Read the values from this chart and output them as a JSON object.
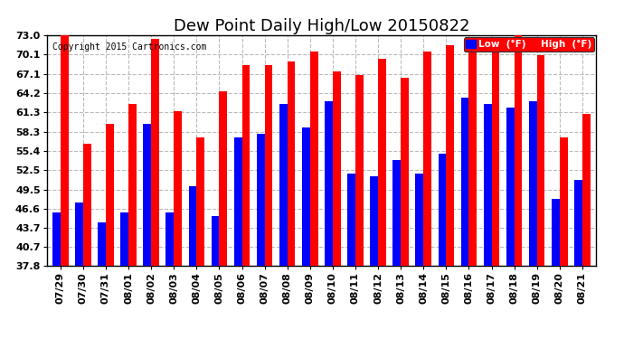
{
  "title": "Dew Point Daily High/Low 20150822",
  "copyright": "Copyright 2015 Cartronics.com",
  "dates": [
    "07/29",
    "07/30",
    "07/31",
    "08/01",
    "08/02",
    "08/03",
    "08/04",
    "08/05",
    "08/06",
    "08/07",
    "08/08",
    "08/09",
    "08/10",
    "08/11",
    "08/12",
    "08/13",
    "08/14",
    "08/15",
    "08/16",
    "08/17",
    "08/18",
    "08/19",
    "08/20",
    "08/21"
  ],
  "low": [
    46.0,
    47.5,
    44.5,
    46.0,
    59.5,
    46.0,
    50.0,
    45.5,
    57.5,
    58.0,
    62.5,
    59.0,
    63.0,
    52.0,
    51.5,
    54.0,
    52.0,
    55.0,
    63.5,
    62.5,
    62.0,
    63.0,
    48.0,
    51.0
  ],
  "high": [
    73.0,
    56.5,
    59.5,
    62.5,
    72.5,
    61.5,
    57.5,
    64.5,
    68.5,
    68.5,
    69.0,
    70.5,
    67.5,
    67.0,
    69.5,
    66.5,
    70.5,
    71.5,
    71.0,
    71.0,
    73.0,
    70.0,
    57.5,
    61.0
  ],
  "low_color": "#0000ff",
  "high_color": "#ff0000",
  "bg_color": "#ffffff",
  "ylim_min": 37.8,
  "ylim_max": 73.0,
  "yticks": [
    37.8,
    40.7,
    43.7,
    46.6,
    49.5,
    52.5,
    55.4,
    58.3,
    61.3,
    64.2,
    67.1,
    70.1,
    73.0
  ],
  "grid_color": "#bbbbbb",
  "title_fontsize": 13,
  "tick_fontsize": 8,
  "bar_width": 0.35,
  "legend_low_label": "Low  (°F)",
  "legend_high_label": "High  (°F)"
}
